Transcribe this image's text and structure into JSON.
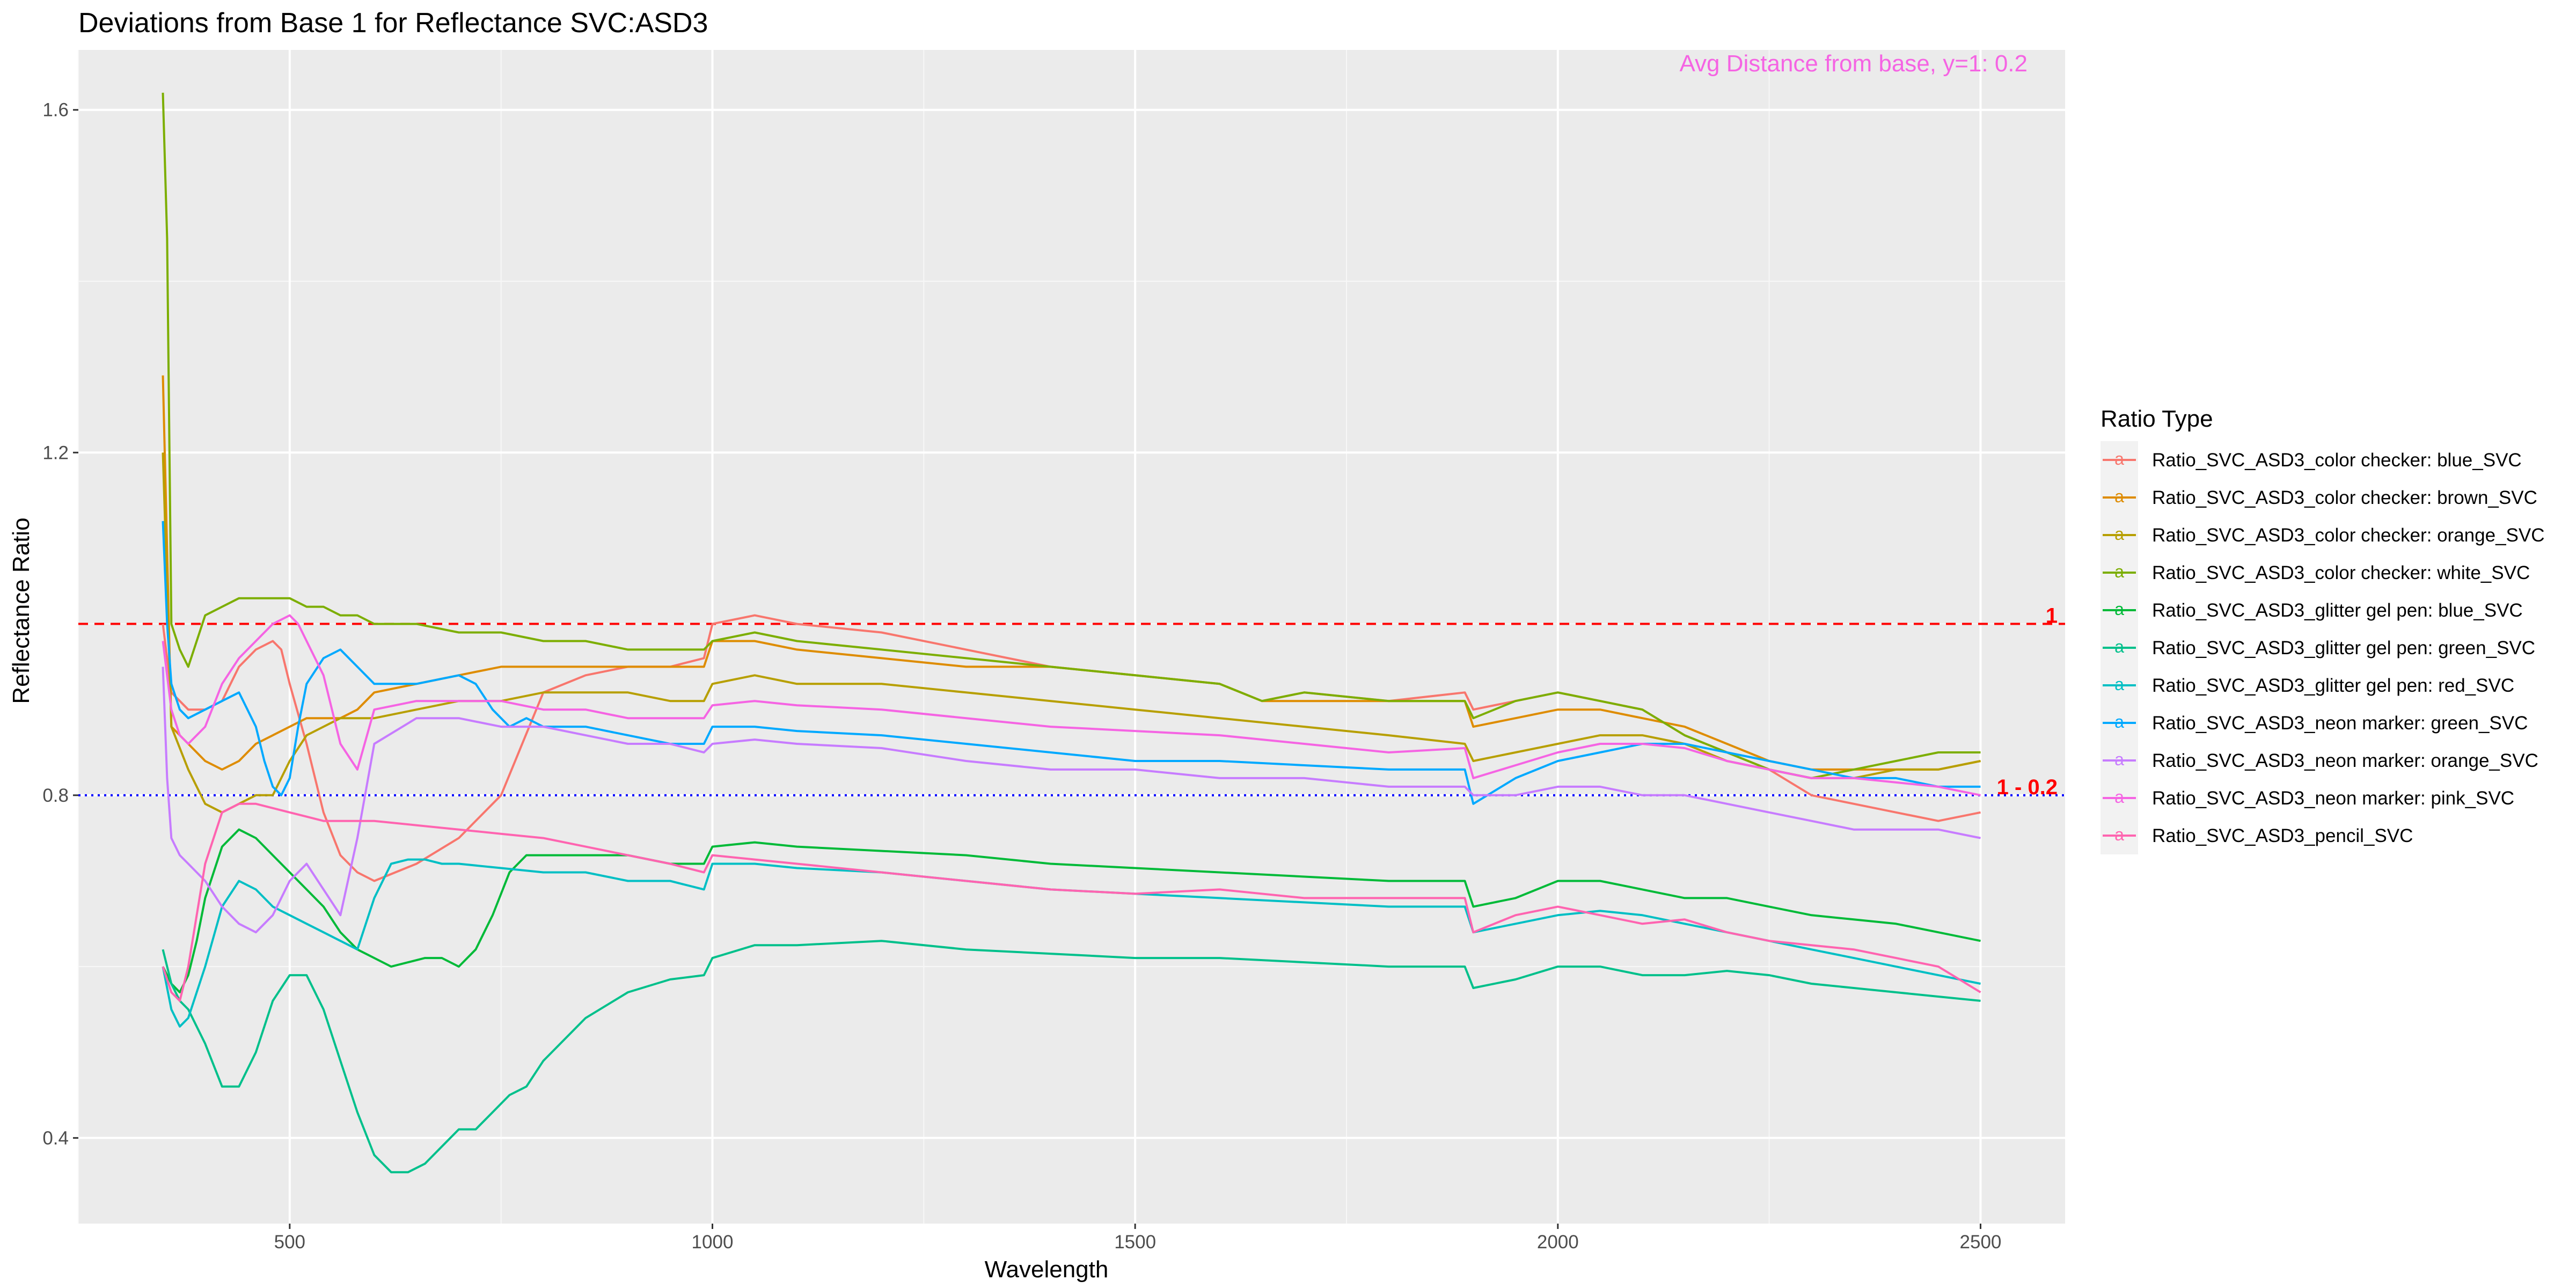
{
  "chart_data": {
    "type": "line",
    "title": "Deviations from Base 1 for Reflectance SVC:ASD3",
    "xlabel": "Wavelength",
    "ylabel": "Reflectance Ratio",
    "xlim": [
      250,
      2600
    ],
    "ylim": [
      0.3,
      1.67
    ],
    "x_ticks": [
      500,
      1000,
      1500,
      2000,
      2500
    ],
    "x_tick_labels": [
      "500",
      "1000",
      "1500",
      "2000",
      "2500"
    ],
    "y_ticks": [
      0.4,
      0.8,
      1.2,
      1.6
    ],
    "y_tick_labels": [
      "0.4",
      "0.8",
      "1.2",
      "1.6"
    ],
    "grid": true,
    "legend_title": "Ratio Type",
    "legend_position": "right",
    "annotation": "Avg Distance from base, y=1:  0.2",
    "annotation_color": "#F564E3",
    "reference_lines": [
      {
        "y": 1.0,
        "label": "1",
        "color": "#FF0000",
        "style": "dashed"
      },
      {
        "y": 0.8,
        "label": "1 - 0.2",
        "label_color": "#FF0000",
        "color": "#0000FF",
        "style": "dotted"
      }
    ],
    "series": [
      {
        "name": "Ratio_SVC_ASD3_color checker: blue_SVC",
        "color": "#F8766D",
        "x": [
          350,
          360,
          380,
          400,
          420,
          440,
          460,
          480,
          490,
          500,
          520,
          540,
          560,
          580,
          600,
          650,
          700,
          750,
          800,
          850,
          900,
          950,
          990,
          1000,
          1050,
          1100,
          1200,
          1300,
          1400,
          1500,
          1600,
          1650,
          1700,
          1800,
          1890,
          1900,
          1950,
          2000,
          2050,
          2100,
          2150,
          2200,
          2250,
          2300,
          2350,
          2400,
          2450,
          2500
        ],
        "y": [
          1.0,
          0.92,
          0.9,
          0.9,
          0.91,
          0.95,
          0.97,
          0.98,
          0.97,
          0.93,
          0.86,
          0.78,
          0.73,
          0.71,
          0.7,
          0.72,
          0.75,
          0.8,
          0.92,
          0.94,
          0.95,
          0.95,
          0.96,
          1.0,
          1.01,
          1.0,
          0.99,
          0.97,
          0.95,
          0.94,
          0.93,
          0.91,
          0.92,
          0.91,
          0.92,
          0.9,
          0.91,
          0.92,
          0.91,
          0.9,
          0.87,
          0.85,
          0.83,
          0.8,
          0.79,
          0.78,
          0.77,
          0.78
        ]
      },
      {
        "name": "Ratio_SVC_ASD3_color checker: brown_SVC",
        "color": "#DE8C00",
        "x": [
          350,
          360,
          380,
          400,
          420,
          440,
          460,
          480,
          500,
          520,
          540,
          560,
          580,
          600,
          650,
          700,
          750,
          800,
          850,
          900,
          950,
          990,
          1000,
          1050,
          1100,
          1200,
          1300,
          1400,
          1500,
          1600,
          1650,
          1700,
          1800,
          1890,
          1900,
          1950,
          2000,
          2050,
          2100,
          2150,
          2200,
          2250,
          2300,
          2350,
          2400,
          2450,
          2500
        ],
        "y": [
          1.29,
          0.88,
          0.86,
          0.84,
          0.83,
          0.84,
          0.86,
          0.87,
          0.88,
          0.89,
          0.89,
          0.89,
          0.9,
          0.92,
          0.93,
          0.94,
          0.95,
          0.95,
          0.95,
          0.95,
          0.95,
          0.95,
          0.98,
          0.98,
          0.97,
          0.96,
          0.95,
          0.95,
          0.94,
          0.93,
          0.91,
          0.91,
          0.91,
          0.91,
          0.88,
          0.89,
          0.9,
          0.9,
          0.89,
          0.88,
          0.86,
          0.84,
          0.83,
          0.83,
          0.83,
          0.83,
          0.84
        ]
      },
      {
        "name": "Ratio_SVC_ASD3_color checker: orange_SVC",
        "color": "#B79F00",
        "x": [
          350,
          360,
          380,
          400,
          420,
          440,
          460,
          480,
          500,
          520,
          540,
          560,
          580,
          600,
          650,
          700,
          750,
          800,
          850,
          900,
          950,
          990,
          1000,
          1050,
          1100,
          1200,
          1300,
          1400,
          1500,
          1600,
          1700,
          1800,
          1890,
          1900,
          1950,
          2000,
          2050,
          2100,
          2150,
          2200,
          2250,
          2300,
          2350,
          2400,
          2450,
          2500
        ],
        "y": [
          1.2,
          0.88,
          0.83,
          0.79,
          0.78,
          0.79,
          0.8,
          0.8,
          0.84,
          0.87,
          0.88,
          0.89,
          0.89,
          0.89,
          0.9,
          0.91,
          0.91,
          0.92,
          0.92,
          0.92,
          0.91,
          0.91,
          0.93,
          0.94,
          0.93,
          0.93,
          0.92,
          0.91,
          0.9,
          0.89,
          0.88,
          0.87,
          0.86,
          0.84,
          0.85,
          0.86,
          0.87,
          0.87,
          0.86,
          0.84,
          0.83,
          0.82,
          0.82,
          0.83,
          0.83,
          0.84
        ]
      },
      {
        "name": "Ratio_SVC_ASD3_color checker: white_SVC",
        "color": "#7CAE00",
        "x": [
          350,
          355,
          360,
          370,
          380,
          400,
          420,
          440,
          460,
          480,
          500,
          520,
          540,
          560,
          580,
          600,
          650,
          700,
          750,
          800,
          850,
          900,
          950,
          990,
          1000,
          1050,
          1100,
          1200,
          1300,
          1400,
          1500,
          1600,
          1650,
          1700,
          1800,
          1890,
          1900,
          1950,
          2000,
          2050,
          2100,
          2150,
          2200,
          2250,
          2300,
          2350,
          2400,
          2450,
          2500
        ],
        "y": [
          1.62,
          1.45,
          1.0,
          0.97,
          0.95,
          1.01,
          1.02,
          1.03,
          1.03,
          1.03,
          1.03,
          1.02,
          1.02,
          1.01,
          1.01,
          1.0,
          1.0,
          0.99,
          0.99,
          0.98,
          0.98,
          0.97,
          0.97,
          0.97,
          0.98,
          0.99,
          0.98,
          0.97,
          0.96,
          0.95,
          0.94,
          0.93,
          0.91,
          0.92,
          0.91,
          0.91,
          0.89,
          0.91,
          0.92,
          0.91,
          0.9,
          0.87,
          0.85,
          0.83,
          0.82,
          0.83,
          0.84,
          0.85,
          0.85
        ]
      },
      {
        "name": "Ratio_SVC_ASD3_glitter gel pen: blue_SVC",
        "color": "#00BA38",
        "x": [
          350,
          360,
          370,
          380,
          390,
          400,
          420,
          440,
          460,
          480,
          500,
          520,
          540,
          560,
          580,
          600,
          620,
          640,
          660,
          680,
          700,
          720,
          740,
          760,
          780,
          800,
          850,
          900,
          950,
          990,
          1000,
          1050,
          1100,
          1200,
          1300,
          1400,
          1500,
          1600,
          1700,
          1800,
          1890,
          1900,
          1950,
          2000,
          2050,
          2100,
          2150,
          2200,
          2250,
          2300,
          2350,
          2400,
          2450,
          2500
        ],
        "y": [
          0.6,
          0.58,
          0.57,
          0.59,
          0.63,
          0.68,
          0.74,
          0.76,
          0.75,
          0.73,
          0.71,
          0.69,
          0.67,
          0.64,
          0.62,
          0.61,
          0.6,
          0.605,
          0.61,
          0.61,
          0.6,
          0.62,
          0.66,
          0.71,
          0.73,
          0.73,
          0.73,
          0.73,
          0.72,
          0.72,
          0.74,
          0.745,
          0.74,
          0.735,
          0.73,
          0.72,
          0.715,
          0.71,
          0.705,
          0.7,
          0.7,
          0.67,
          0.68,
          0.7,
          0.7,
          0.69,
          0.68,
          0.68,
          0.67,
          0.66,
          0.655,
          0.65,
          0.64,
          0.63
        ]
      },
      {
        "name": "Ratio_SVC_ASD3_glitter gel pen: green_SVC",
        "color": "#00C08B",
        "x": [
          350,
          360,
          370,
          380,
          400,
          420,
          440,
          460,
          480,
          500,
          520,
          540,
          560,
          580,
          600,
          620,
          640,
          660,
          680,
          700,
          720,
          740,
          760,
          780,
          800,
          850,
          900,
          950,
          990,
          1000,
          1050,
          1100,
          1200,
          1300,
          1400,
          1500,
          1600,
          1700,
          1800,
          1890,
          1900,
          1950,
          2000,
          2050,
          2100,
          2150,
          2200,
          2250,
          2300,
          2350,
          2400,
          2450,
          2500
        ],
        "y": [
          0.62,
          0.58,
          0.56,
          0.55,
          0.51,
          0.46,
          0.46,
          0.5,
          0.56,
          0.59,
          0.59,
          0.55,
          0.49,
          0.43,
          0.38,
          0.36,
          0.36,
          0.37,
          0.39,
          0.41,
          0.41,
          0.43,
          0.45,
          0.46,
          0.49,
          0.54,
          0.57,
          0.585,
          0.59,
          0.61,
          0.625,
          0.625,
          0.63,
          0.62,
          0.615,
          0.61,
          0.61,
          0.605,
          0.6,
          0.6,
          0.575,
          0.585,
          0.6,
          0.6,
          0.59,
          0.59,
          0.595,
          0.59,
          0.58,
          0.575,
          0.57,
          0.565,
          0.56
        ]
      },
      {
        "name": "Ratio_SVC_ASD3_glitter gel pen: red_SVC",
        "color": "#00BFC4",
        "x": [
          350,
          360,
          370,
          380,
          400,
          420,
          440,
          460,
          480,
          500,
          520,
          540,
          560,
          580,
          600,
          620,
          640,
          660,
          680,
          700,
          750,
          800,
          850,
          900,
          950,
          990,
          1000,
          1050,
          1100,
          1200,
          1300,
          1400,
          1500,
          1600,
          1700,
          1800,
          1890,
          1900,
          1950,
          2000,
          2050,
          2100,
          2150,
          2200,
          2250,
          2300,
          2350,
          2400,
          2450,
          2500
        ],
        "y": [
          0.6,
          0.55,
          0.53,
          0.54,
          0.6,
          0.67,
          0.7,
          0.69,
          0.67,
          0.66,
          0.65,
          0.64,
          0.63,
          0.62,
          0.68,
          0.72,
          0.725,
          0.725,
          0.72,
          0.72,
          0.715,
          0.71,
          0.71,
          0.7,
          0.7,
          0.69,
          0.72,
          0.72,
          0.715,
          0.71,
          0.7,
          0.69,
          0.685,
          0.68,
          0.675,
          0.67,
          0.67,
          0.64,
          0.65,
          0.66,
          0.665,
          0.66,
          0.65,
          0.64,
          0.63,
          0.62,
          0.61,
          0.6,
          0.59,
          0.58
        ]
      },
      {
        "name": "Ratio_SVC_ASD3_neon marker: green_SVC",
        "color": "#00A9FF",
        "x": [
          350,
          355,
          360,
          370,
          380,
          400,
          420,
          440,
          460,
          470,
          480,
          490,
          500,
          510,
          520,
          540,
          560,
          580,
          600,
          650,
          700,
          720,
          740,
          760,
          780,
          800,
          850,
          900,
          950,
          990,
          1000,
          1050,
          1100,
          1200,
          1300,
          1400,
          1500,
          1600,
          1700,
          1800,
          1890,
          1900,
          1950,
          2000,
          2050,
          2100,
          2150,
          2200,
          2250,
          2300,
          2350,
          2400,
          2450,
          2500
        ],
        "y": [
          1.12,
          1.0,
          0.93,
          0.9,
          0.89,
          0.9,
          0.91,
          0.92,
          0.88,
          0.84,
          0.81,
          0.8,
          0.82,
          0.88,
          0.93,
          0.96,
          0.97,
          0.95,
          0.93,
          0.93,
          0.94,
          0.93,
          0.9,
          0.88,
          0.89,
          0.88,
          0.88,
          0.87,
          0.86,
          0.86,
          0.88,
          0.88,
          0.875,
          0.87,
          0.86,
          0.85,
          0.84,
          0.84,
          0.835,
          0.83,
          0.83,
          0.79,
          0.82,
          0.84,
          0.85,
          0.86,
          0.86,
          0.85,
          0.84,
          0.83,
          0.82,
          0.82,
          0.81,
          0.81
        ]
      },
      {
        "name": "Ratio_SVC_ASD3_neon marker: orange_SVC",
        "color": "#C77CFF",
        "x": [
          350,
          355,
          360,
          370,
          380,
          400,
          420,
          440,
          460,
          480,
          500,
          520,
          540,
          560,
          580,
          600,
          650,
          700,
          750,
          800,
          850,
          900,
          950,
          990,
          1000,
          1050,
          1100,
          1200,
          1300,
          1400,
          1500,
          1600,
          1700,
          1800,
          1890,
          1900,
          1950,
          2000,
          2050,
          2100,
          2150,
          2200,
          2250,
          2300,
          2350,
          2400,
          2450,
          2500
        ],
        "y": [
          0.95,
          0.82,
          0.75,
          0.73,
          0.72,
          0.7,
          0.67,
          0.65,
          0.64,
          0.66,
          0.7,
          0.72,
          0.69,
          0.66,
          0.75,
          0.86,
          0.89,
          0.89,
          0.88,
          0.88,
          0.87,
          0.86,
          0.86,
          0.85,
          0.86,
          0.865,
          0.86,
          0.855,
          0.84,
          0.83,
          0.83,
          0.82,
          0.82,
          0.81,
          0.81,
          0.8,
          0.8,
          0.81,
          0.81,
          0.8,
          0.8,
          0.79,
          0.78,
          0.77,
          0.76,
          0.76,
          0.76,
          0.75
        ]
      },
      {
        "name": "Ratio_SVC_ASD3_neon marker: pink_SVC",
        "color": "#F564E3",
        "x": [
          350,
          360,
          370,
          380,
          400,
          420,
          440,
          460,
          480,
          500,
          510,
          520,
          540,
          560,
          580,
          600,
          650,
          700,
          750,
          800,
          850,
          900,
          950,
          990,
          1000,
          1050,
          1100,
          1200,
          1300,
          1400,
          1500,
          1600,
          1700,
          1800,
          1890,
          1900,
          1950,
          2000,
          2050,
          2100,
          2150,
          2200,
          2250,
          2300,
          2350,
          2400,
          2450,
          2500
        ],
        "y": [
          0.98,
          0.9,
          0.87,
          0.86,
          0.88,
          0.93,
          0.96,
          0.98,
          1.0,
          1.01,
          1.0,
          0.98,
          0.94,
          0.86,
          0.83,
          0.9,
          0.91,
          0.91,
          0.91,
          0.9,
          0.9,
          0.89,
          0.89,
          0.89,
          0.905,
          0.91,
          0.905,
          0.9,
          0.89,
          0.88,
          0.875,
          0.87,
          0.86,
          0.85,
          0.855,
          0.82,
          0.835,
          0.85,
          0.86,
          0.86,
          0.855,
          0.84,
          0.83,
          0.82,
          0.82,
          0.815,
          0.81,
          0.8
        ]
      },
      {
        "name": "Ratio_SVC_ASD3_pencil_SVC",
        "color": "#FF64B0",
        "x": [
          350,
          360,
          370,
          380,
          400,
          420,
          440,
          460,
          480,
          500,
          520,
          540,
          560,
          580,
          600,
          650,
          700,
          750,
          800,
          850,
          900,
          950,
          990,
          1000,
          1050,
          1100,
          1200,
          1300,
          1400,
          1500,
          1600,
          1700,
          1800,
          1890,
          1900,
          1950,
          2000,
          2050,
          2100,
          2150,
          2200,
          2250,
          2300,
          2350,
          2400,
          2450,
          2500
        ],
        "y": [
          0.6,
          0.57,
          0.56,
          0.6,
          0.72,
          0.78,
          0.79,
          0.79,
          0.785,
          0.78,
          0.775,
          0.77,
          0.77,
          0.77,
          0.77,
          0.765,
          0.76,
          0.755,
          0.75,
          0.74,
          0.73,
          0.72,
          0.71,
          0.73,
          0.725,
          0.72,
          0.71,
          0.7,
          0.69,
          0.685,
          0.69,
          0.68,
          0.68,
          0.68,
          0.64,
          0.66,
          0.67,
          0.66,
          0.65,
          0.655,
          0.64,
          0.63,
          0.625,
          0.62,
          0.61,
          0.6,
          0.57
        ]
      }
    ]
  }
}
